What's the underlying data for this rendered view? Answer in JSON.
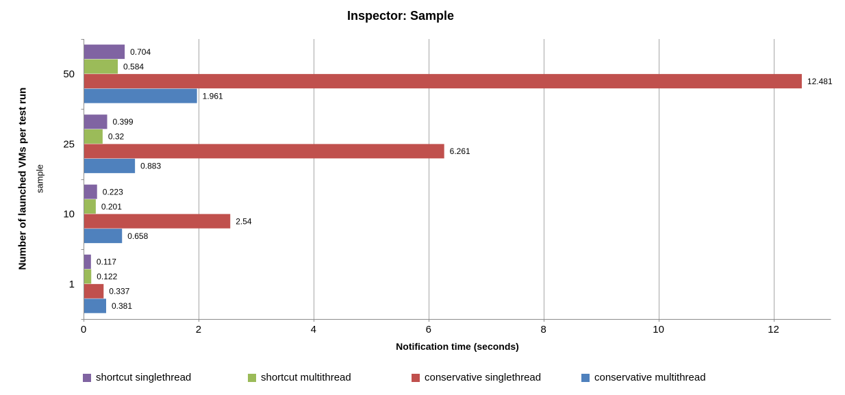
{
  "chart_data": {
    "type": "bar",
    "orientation": "horizontal",
    "title": "Inspector: Sample",
    "xlabel": "Notification time (seconds)",
    "ylabel": "Number of launched VMs per test run",
    "ylabel_secondary": "sample",
    "categories": [
      "50",
      "25",
      "10",
      "1"
    ],
    "series": [
      {
        "name": "shortcut singlethread",
        "color": "#8064A2",
        "values": [
          0.704,
          0.399,
          0.223,
          0.117
        ]
      },
      {
        "name": "shortcut multithread",
        "color": "#9BBB59",
        "values": [
          0.584,
          0.32,
          0.201,
          0.122
        ]
      },
      {
        "name": "conservative singlethread",
        "color": "#C0504D",
        "values": [
          12.481,
          6.261,
          2.54,
          0.337
        ]
      },
      {
        "name": "conservative multithread",
        "color": "#4F81BD",
        "values": [
          1.961,
          0.883,
          0.658,
          0.381
        ]
      }
    ],
    "x_ticks": [
      0,
      2,
      4,
      6,
      8,
      10,
      12
    ],
    "xlim": [
      0,
      13
    ],
    "grid": "vertical-only",
    "legend_position": "bottom",
    "data_labels": true,
    "axis_color": "#8C8C8C",
    "gridline_color": "#A6A6A6",
    "text_color": "#000000"
  }
}
